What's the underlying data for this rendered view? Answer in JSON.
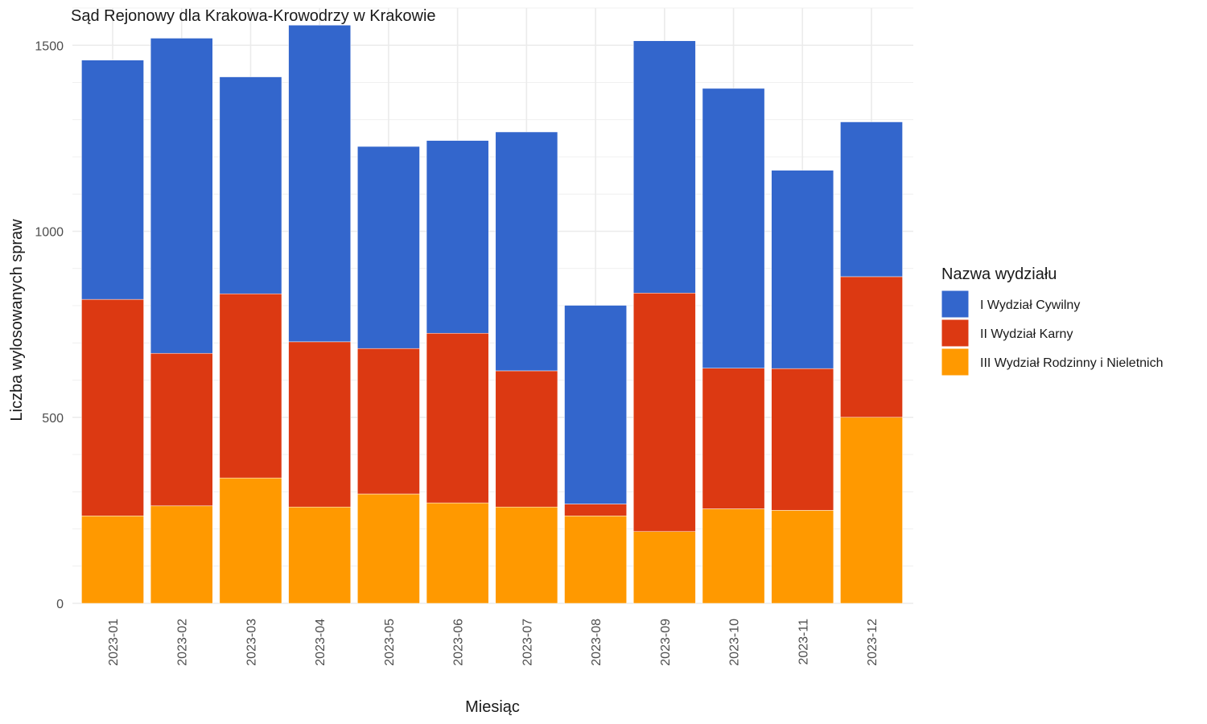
{
  "chart_data": {
    "type": "bar",
    "stacked": true,
    "title": "Sąd Rejonowy dla Krakowa-Krowodrzy w Krakowie",
    "xlabel": "Miesiąc",
    "ylabel": "Liczba wylosowanych spraw",
    "ylim": [
      0,
      1600
    ],
    "yticks": [
      0,
      500,
      1000,
      1500
    ],
    "grid": true,
    "legend": {
      "title": "Nazwa wydziału",
      "position": "right"
    },
    "categories": [
      "2023-01",
      "2023-02",
      "2023-03",
      "2023-04",
      "2023-05",
      "2023-06",
      "2023-07",
      "2023-08",
      "2023-09",
      "2023-10",
      "2023-11",
      "2023-12"
    ],
    "series": [
      {
        "name": "III Wydział Rodzinny i Nieletnich",
        "color": "#FF9900",
        "values": [
          235,
          262,
          337,
          259,
          294,
          270,
          259,
          235,
          193,
          254,
          250,
          500
        ]
      },
      {
        "name": "II Wydział Karny",
        "color": "#DC3912",
        "values": [
          582,
          410,
          495,
          444,
          391,
          456,
          366,
          32,
          641,
          378,
          381,
          378
        ]
      },
      {
        "name": "I Wydział Cywilny",
        "color": "#3366CC",
        "values": [
          643,
          847,
          583,
          851,
          543,
          518,
          642,
          534,
          678,
          752,
          533,
          416
        ]
      }
    ],
    "legend_order": [
      "I Wydział Cywilny",
      "II Wydział Karny",
      "III Wydział Rodzinny i Nieletnich"
    ]
  }
}
